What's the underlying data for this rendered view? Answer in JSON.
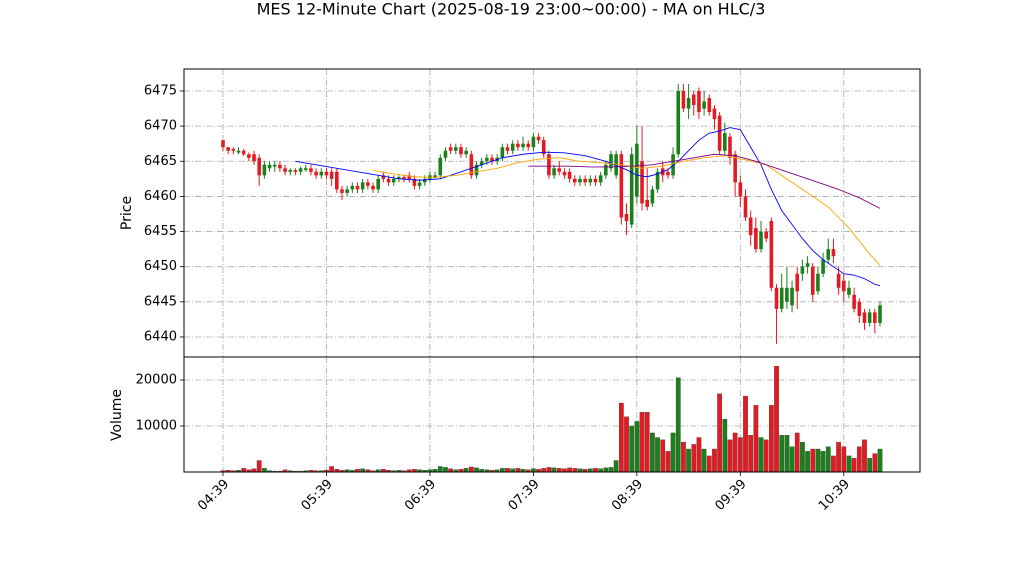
{
  "chart_data": {
    "type": "candlestick",
    "title": "MES 12-Minute Chart (2025-08-19 23:00~00:00) - MA on HLC/3",
    "ylabel": "Price",
    "categories": [
      "04:39",
      null,
      null,
      null,
      null,
      null,
      null,
      null,
      null,
      null,
      null,
      null,
      null,
      null,
      null,
      null,
      null,
      null,
      null,
      null,
      "05:39",
      null,
      null,
      null,
      null,
      null,
      null,
      null,
      null,
      null,
      null,
      null,
      null,
      null,
      null,
      null,
      null,
      null,
      null,
      null,
      "06:39",
      null,
      null,
      null,
      null,
      null,
      null,
      null,
      null,
      null,
      null,
      null,
      null,
      null,
      null,
      null,
      null,
      null,
      null,
      null,
      "07:39",
      null,
      null,
      null,
      null,
      null,
      null,
      null,
      null,
      null,
      null,
      null,
      null,
      null,
      null,
      null,
      null,
      null,
      null,
      null,
      "08:39",
      null,
      null,
      null,
      null,
      null,
      null,
      null,
      null,
      null,
      null,
      null,
      null,
      null,
      null,
      null,
      null,
      null,
      null,
      null,
      "09:39",
      null,
      null,
      null,
      null,
      null,
      null,
      null,
      null,
      null,
      null,
      null,
      null,
      null,
      null,
      null,
      null,
      null,
      null,
      null,
      "10:39",
      null,
      null,
      null,
      null,
      null,
      null,
      null
    ],
    "open": [
      6468,
      6467,
      6466.75,
      6466.25,
      6466.5,
      6466,
      6466,
      6465.5,
      6463,
      6464,
      6464.25,
      6464.5,
      6464,
      6463.5,
      6463.75,
      6463.5,
      6463.75,
      6464,
      6463.5,
      6463,
      6463.5,
      6463.5,
      6463.5,
      6461,
      6460.5,
      6461,
      6461.5,
      6461,
      6462,
      6461.5,
      6461,
      6463,
      6462.5,
      6462,
      6462.5,
      6462.75,
      6463,
      6462.5,
      6461.5,
      6462,
      6462.5,
      6462.75,
      6463,
      6465.5,
      6467,
      6466.5,
      6467,
      6466,
      6466,
      6463,
      6464.5,
      6465,
      6465.5,
      6465,
      6465.5,
      6467,
      6466.5,
      6467.5,
      6467,
      6467.5,
      6467,
      6468.5,
      6468,
      6466,
      6463,
      6464,
      6463.5,
      6463.5,
      6462.5,
      6462,
      6462.5,
      6462,
      6462.5,
      6462,
      6463,
      6464,
      6463,
      6466,
      6457.5,
      6456,
      6460,
      6465,
      6459.5,
      6459,
      6461,
      6464,
      6463.5,
      6463,
      6466,
      6475,
      6472.5,
      6474.5,
      6475,
      6472.5,
      6474,
      6472.5,
      6471.5,
      6466.5,
      6468.5,
      6466,
      6462,
      6460,
      6457,
      6455.5,
      6452.5,
      6455,
      6456.5,
      6447,
      6444,
      6445,
      6444.5,
      6449,
      6449,
      6450,
      6450,
      6446.5,
      6449,
      6451,
      6452.5,
      6449,
      6448,
      6446,
      6446,
      6445,
      6443.5,
      6442,
      6443.5,
      6442
    ],
    "high": [
      6468,
      6467,
      6467,
      6467,
      6466.75,
      6466.25,
      6466.5,
      6466,
      6465,
      6465,
      6465,
      6465,
      6464.5,
      6464,
      6464,
      6464.25,
      6464.5,
      6464.5,
      6464,
      6464,
      6464,
      6464,
      6464,
      6461.5,
      6461.5,
      6462,
      6462,
      6462.5,
      6462.5,
      6462,
      6463,
      6463.5,
      6463,
      6463,
      6463,
      6463,
      6463.5,
      6463,
      6462.5,
      6463,
      6463.5,
      6463.5,
      6466,
      6467,
      6467.5,
      6467.5,
      6467.5,
      6467,
      6466.5,
      6465,
      6465.5,
      6466,
      6466,
      6466,
      6467.5,
      6467.5,
      6468,
      6468,
      6468.5,
      6468,
      6469,
      6469,
      6468.5,
      6466.5,
      6464.5,
      6465,
      6464,
      6464,
      6463,
      6463,
      6463,
      6463,
      6463,
      6463.5,
      6465,
      6466.5,
      6466.5,
      6466.5,
      6459,
      6467,
      6470,
      6470,
      6464,
      6461.5,
      6464,
      6465,
      6464,
      6467,
      6476,
      6476,
      6476,
      6475,
      6475.5,
      6475,
      6474.5,
      6473,
      6472,
      6470.5,
      6469,
      6466.5,
      6463,
      6461,
      6458,
      6457,
      6456.5,
      6455.5,
      6457,
      6447.5,
      6449,
      6450,
      6448,
      6450,
      6451,
      6451.5,
      6450.5,
      6450,
      6452,
      6454,
      6454,
      6450,
      6449,
      6448,
      6447,
      6445.5,
      6444,
      6444,
      6444,
      6445
    ],
    "low": [
      6466.5,
      6466,
      6466,
      6466,
      6465.75,
      6465,
      6464.5,
      6461.5,
      6462.5,
      6463.5,
      6463.5,
      6463.5,
      6463,
      6463,
      6463,
      6463,
      6463.5,
      6463,
      6462.5,
      6462.5,
      6462.5,
      6461.5,
      6460.5,
      6459.5,
      6460,
      6460.5,
      6460.5,
      6460.5,
      6461,
      6460.5,
      6460.5,
      6462,
      6461.5,
      6461.5,
      6462,
      6462,
      6462,
      6461,
      6461,
      6461.5,
      6462,
      6462.5,
      6462.5,
      6465,
      6466,
      6466,
      6465.5,
      6465.5,
      6462.5,
      6462.5,
      6464,
      6464.5,
      6464.5,
      6464.5,
      6465,
      6466,
      6466,
      6466.5,
      6466.5,
      6466.5,
      6466.5,
      6467.5,
      6465.5,
      6462.5,
      6462.5,
      6463,
      6462.5,
      6462,
      6461.5,
      6461.5,
      6461.5,
      6461.5,
      6461.5,
      6461.5,
      6462.5,
      6463.5,
      6462.5,
      6456,
      6454.5,
      6455.5,
      6459,
      6458,
      6458,
      6458.5,
      6460.5,
      6462,
      6462.5,
      6462.5,
      6465.5,
      6472,
      6471,
      6471.5,
      6471,
      6471.5,
      6471.5,
      6469.5,
      6466,
      6466,
      6464.5,
      6460,
      6458.5,
      6456.5,
      6453,
      6452,
      6452,
      6453.5,
      6446.5,
      6439,
      6443.5,
      6444,
      6443.5,
      6444,
      6448,
      6449,
      6445,
      6446,
      6448.5,
      6450.5,
      6450.5,
      6446,
      6445,
      6445.5,
      6443.5,
      6442,
      6441,
      6441.5,
      6440.5,
      6441.5
    ],
    "close": [
      6467,
      6466.5,
      6466.5,
      6466.5,
      6466,
      6465.5,
      6465,
      6463,
      6464.5,
      6464.5,
      6464.5,
      6464,
      6463.5,
      6463.75,
      6463.5,
      6464,
      6464,
      6463.5,
      6463,
      6463.5,
      6463,
      6462.5,
      6461,
      6460.5,
      6461,
      6461.5,
      6461,
      6462,
      6461.5,
      6461,
      6462.5,
      6462.5,
      6462,
      6462.5,
      6462.75,
      6462.5,
      6462.5,
      6461.5,
      6462,
      6462.5,
      6463,
      6463,
      6465.5,
      6466.5,
      6466.5,
      6467,
      6466,
      6466.5,
      6463,
      6464.5,
      6465,
      6465.5,
      6465,
      6465.5,
      6467,
      6466.5,
      6467.5,
      6467,
      6467.5,
      6467,
      6468.5,
      6468,
      6466,
      6463,
      6464,
      6463.5,
      6463,
      6462.5,
      6462,
      6462.5,
      6462,
      6462.5,
      6462,
      6463,
      6464.5,
      6466,
      6466,
      6457,
      6456.5,
      6466,
      6467.5,
      6459,
      6458.5,
      6461,
      6463.5,
      6463,
      6463,
      6466,
      6475,
      6472.5,
      6474,
      6473,
      6472,
      6473.5,
      6472,
      6471,
      6466.5,
      6469,
      6465.5,
      6462,
      6460,
      6457,
      6454.5,
      6452.5,
      6455,
      6454,
      6447,
      6444,
      6447,
      6447,
      6447,
      6446.5,
      6450,
      6450.5,
      6446,
      6449,
      6451,
      6452.5,
      6451.5,
      6447,
      6446.5,
      6447,
      6444,
      6443,
      6442,
      6443.5,
      6442,
      6444.5
    ],
    "up_color": "#1b801b",
    "down_color": "#e41a22",
    "ylim": [
      6437.15,
      6478.13
    ],
    "yticks": [
      6440,
      6445,
      6450,
      6455,
      6460,
      6465,
      6470,
      6475
    ],
    "grid": true,
    "ma": [
      {
        "color": "#0000ff",
        "x": [
          14,
          18,
          22,
          26,
          30,
          34,
          38,
          42,
          46,
          50,
          54,
          58,
          62,
          66,
          70,
          74,
          78,
          80,
          82,
          84,
          86,
          88,
          90,
          92,
          94,
          96,
          98,
          100,
          102,
          104,
          106,
          108,
          110,
          112,
          114,
          116,
          118,
          120,
          122,
          124,
          126,
          127
        ],
        "values": [
          6465,
          6464.5,
          6464,
          6463.5,
          6463,
          6462.5,
          6462.3,
          6462.5,
          6463.5,
          6464.5,
          6465.5,
          6466,
          6466.3,
          6466.2,
          6465.8,
          6465,
          6463.8,
          6463,
          6462.8,
          6463.2,
          6463.8,
          6465,
          6466.5,
          6468,
          6469,
          6469.3,
          6469.8,
          6469.5,
          6467,
          6464.5,
          6461,
          6458,
          6456,
          6454,
          6452.3,
          6451,
          6450,
          6449,
          6448.8,
          6448.3,
          6447.5,
          6447.3
        ]
      },
      {
        "color": "#ffa500",
        "x": [
          29,
          33,
          37,
          41,
          45,
          49,
          53,
          57,
          61,
          65,
          69,
          73,
          77,
          81,
          85,
          89,
          93,
          97,
          101,
          105,
          109,
          113,
          117,
          121,
          125,
          127
        ],
        "values": [
          6463.7,
          6463.2,
          6462.8,
          6462.7,
          6463,
          6463.5,
          6464,
          6464.8,
          6465.3,
          6465.5,
          6465,
          6464.8,
          6464.5,
          6464,
          6464.3,
          6465,
          6465.5,
          6465.8,
          6465.2,
          6464.5,
          6462.5,
          6460.5,
          6458.5,
          6455.5,
          6451.8,
          6450.2
        ]
      },
      {
        "color": "#800080",
        "x": [
          59,
          63,
          67,
          71,
          75,
          79,
          83,
          87,
          91,
          95,
          99,
          103,
          107,
          111,
          115,
          119,
          123,
          127
        ],
        "values": [
          6464.3,
          6464.3,
          6464.3,
          6464.2,
          6464.2,
          6464.3,
          6464.5,
          6465,
          6465.5,
          6466,
          6465.8,
          6465,
          6464,
          6463,
          6462,
          6461,
          6459.8,
          6458.3
        ]
      }
    ],
    "volume": {
      "ylabel": "Volume",
      "values": [
        300,
        400,
        300,
        400,
        800,
        500,
        700,
        2500,
        800,
        300,
        200,
        200,
        500,
        300,
        200,
        200,
        300,
        400,
        300,
        300,
        400,
        1200,
        600,
        400,
        500,
        400,
        600,
        700,
        500,
        300,
        500,
        600,
        400,
        300,
        400,
        300,
        500,
        600,
        500,
        400,
        500,
        600,
        1200,
        1000,
        700,
        500,
        600,
        800,
        1100,
        900,
        600,
        500,
        400,
        500,
        800,
        800,
        700,
        800,
        600,
        500,
        700,
        600,
        800,
        1000,
        900,
        800,
        700,
        900,
        800,
        700,
        600,
        700,
        800,
        700,
        900,
        1000,
        2500,
        15000,
        12000,
        10000,
        11000,
        13000,
        13000,
        8500,
        7500,
        7000,
        4500,
        8500,
        20500,
        6500,
        5000,
        6000,
        7500,
        5000,
        3500,
        5000,
        17000,
        11500,
        7000,
        8500,
        7500,
        16500,
        8000,
        14500,
        7500,
        7000,
        14500,
        23000,
        8000,
        8000,
        5500,
        8500,
        6500,
        4500,
        5000,
        5000,
        4500,
        5500,
        3500,
        6500,
        5500,
        3500,
        3000,
        5500,
        7000,
        3000,
        4000,
        5000
      ],
      "ylim": [
        0,
        25000
      ],
      "yticks": [
        10000,
        20000
      ]
    }
  }
}
